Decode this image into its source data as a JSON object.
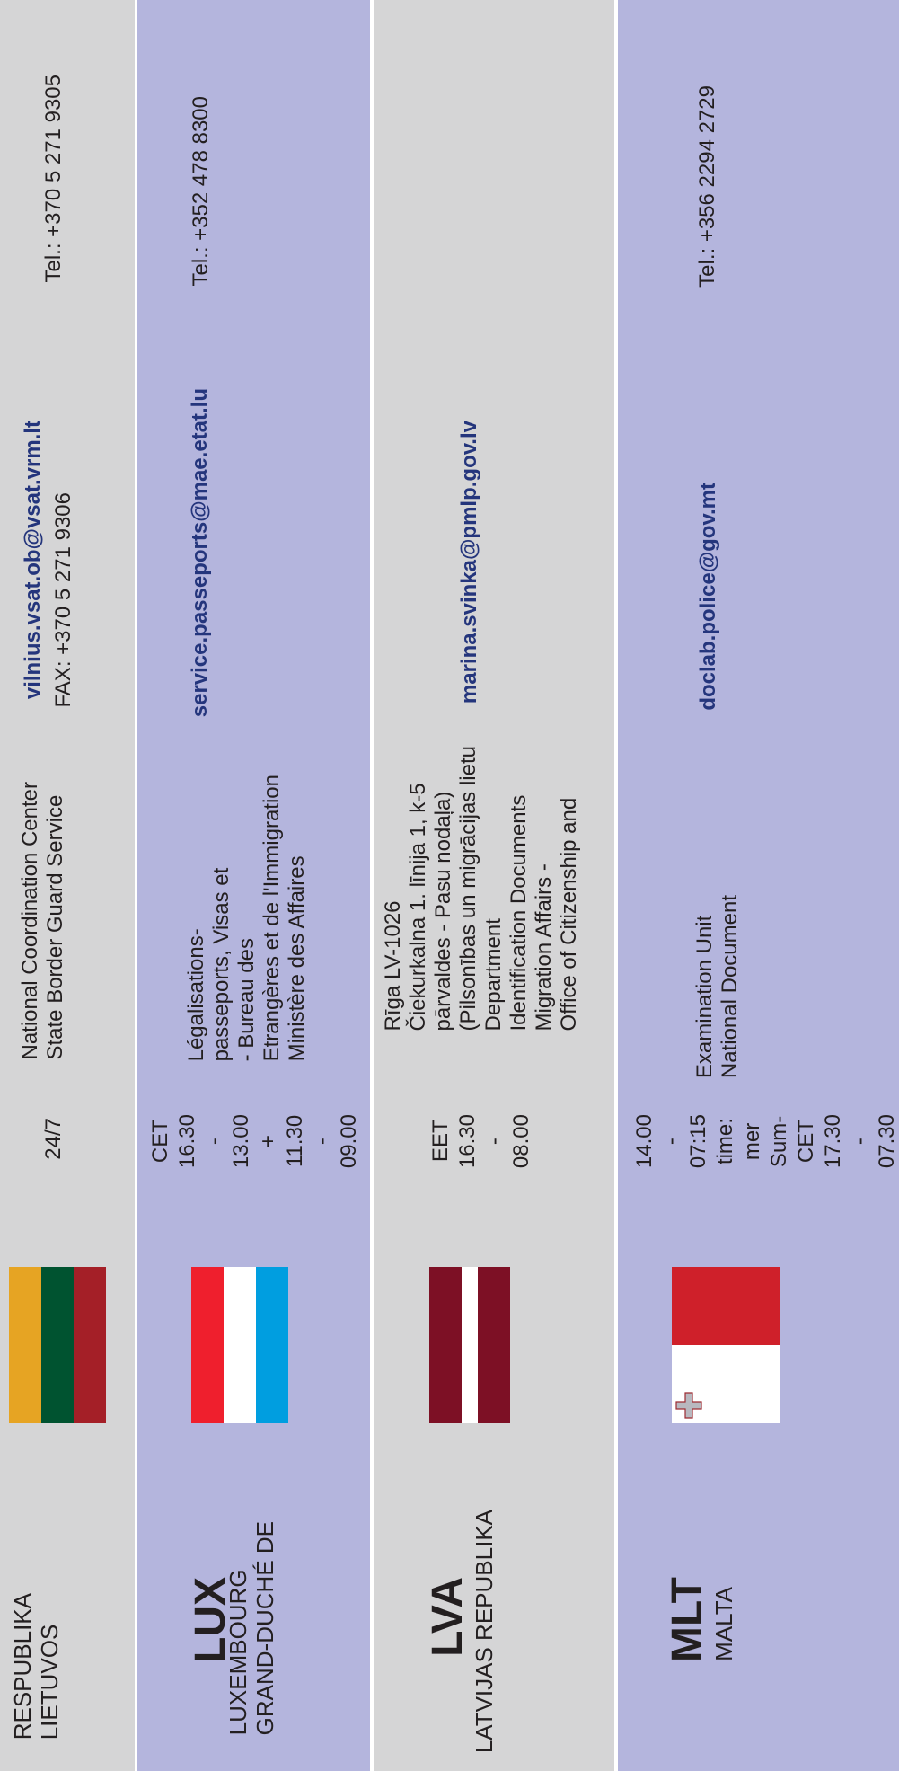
{
  "colors": {
    "gray_band": "#d5d5d6",
    "purple_band": "#b4b5dd",
    "email_text": "#24357c"
  },
  "rows": [
    {
      "country_line1": "LIETUVOS",
      "country_line2": "RESPUBLIKA",
      "flag_icon": "lithuania-flag-icon",
      "hours": "24/7",
      "office_line1": "State Border Guard Service",
      "office_line2": "National Coordination Center",
      "email": "vilnius.vsat.ob@vsat.vrm.lt",
      "fax": "FAX: +370 5 271 9306",
      "tel": "Tel.: +370 5 271 9305"
    },
    {
      "code": "LUX",
      "country_line1": "GRAND-DUCHÉ DE",
      "country_line2": "LUXEMBOURG",
      "flag_icon": "luxembourg-flag-icon",
      "hours": [
        "09.00",
        "-",
        "11.30",
        "+",
        "13.00",
        "-",
        "16.30",
        "CET"
      ],
      "office": [
        "Ministère des Affaires",
        "Etrangères et de l'Immigration",
        "- Bureau des",
        "passeports, Visas et",
        "Légalisations-"
      ],
      "email": "service.passeports@mae.etat.lu",
      "tel": "Tel.: +352 478 8300"
    },
    {
      "code": "LVA",
      "country_line1": "LATVIJAS REPUBLIKA",
      "flag_icon": "latvia-flag-icon",
      "hours": [
        "08.00",
        "-",
        "16.30",
        "EET"
      ],
      "office": [
        "Office of Citizenship and",
        "Migration Affairs -",
        "Identification Documents",
        "Department",
        "(Pilsonības un migrācijas lietu",
        "pārvaldes - Pasu nodaļa)",
        "Čiekurkalna 1. līnija 1, k-5",
        "Rīga LV-1026"
      ],
      "email": "marina.svinka@pmlp.gov.lv"
    },
    {
      "code": "MLT",
      "country_line1": "MALTA",
      "flag_icon": "malta-flag-icon",
      "hours": [
        "07.30",
        "-",
        "17.30",
        "CET",
        "Sum-",
        "mer",
        "time:",
        "07:15",
        "-",
        "14.00"
      ],
      "office_line1": "National Document",
      "office_line2": "Examination Unit",
      "email": "doclab.police@gov.mt",
      "tel": "Tel.: +356 2294 2729"
    }
  ]
}
